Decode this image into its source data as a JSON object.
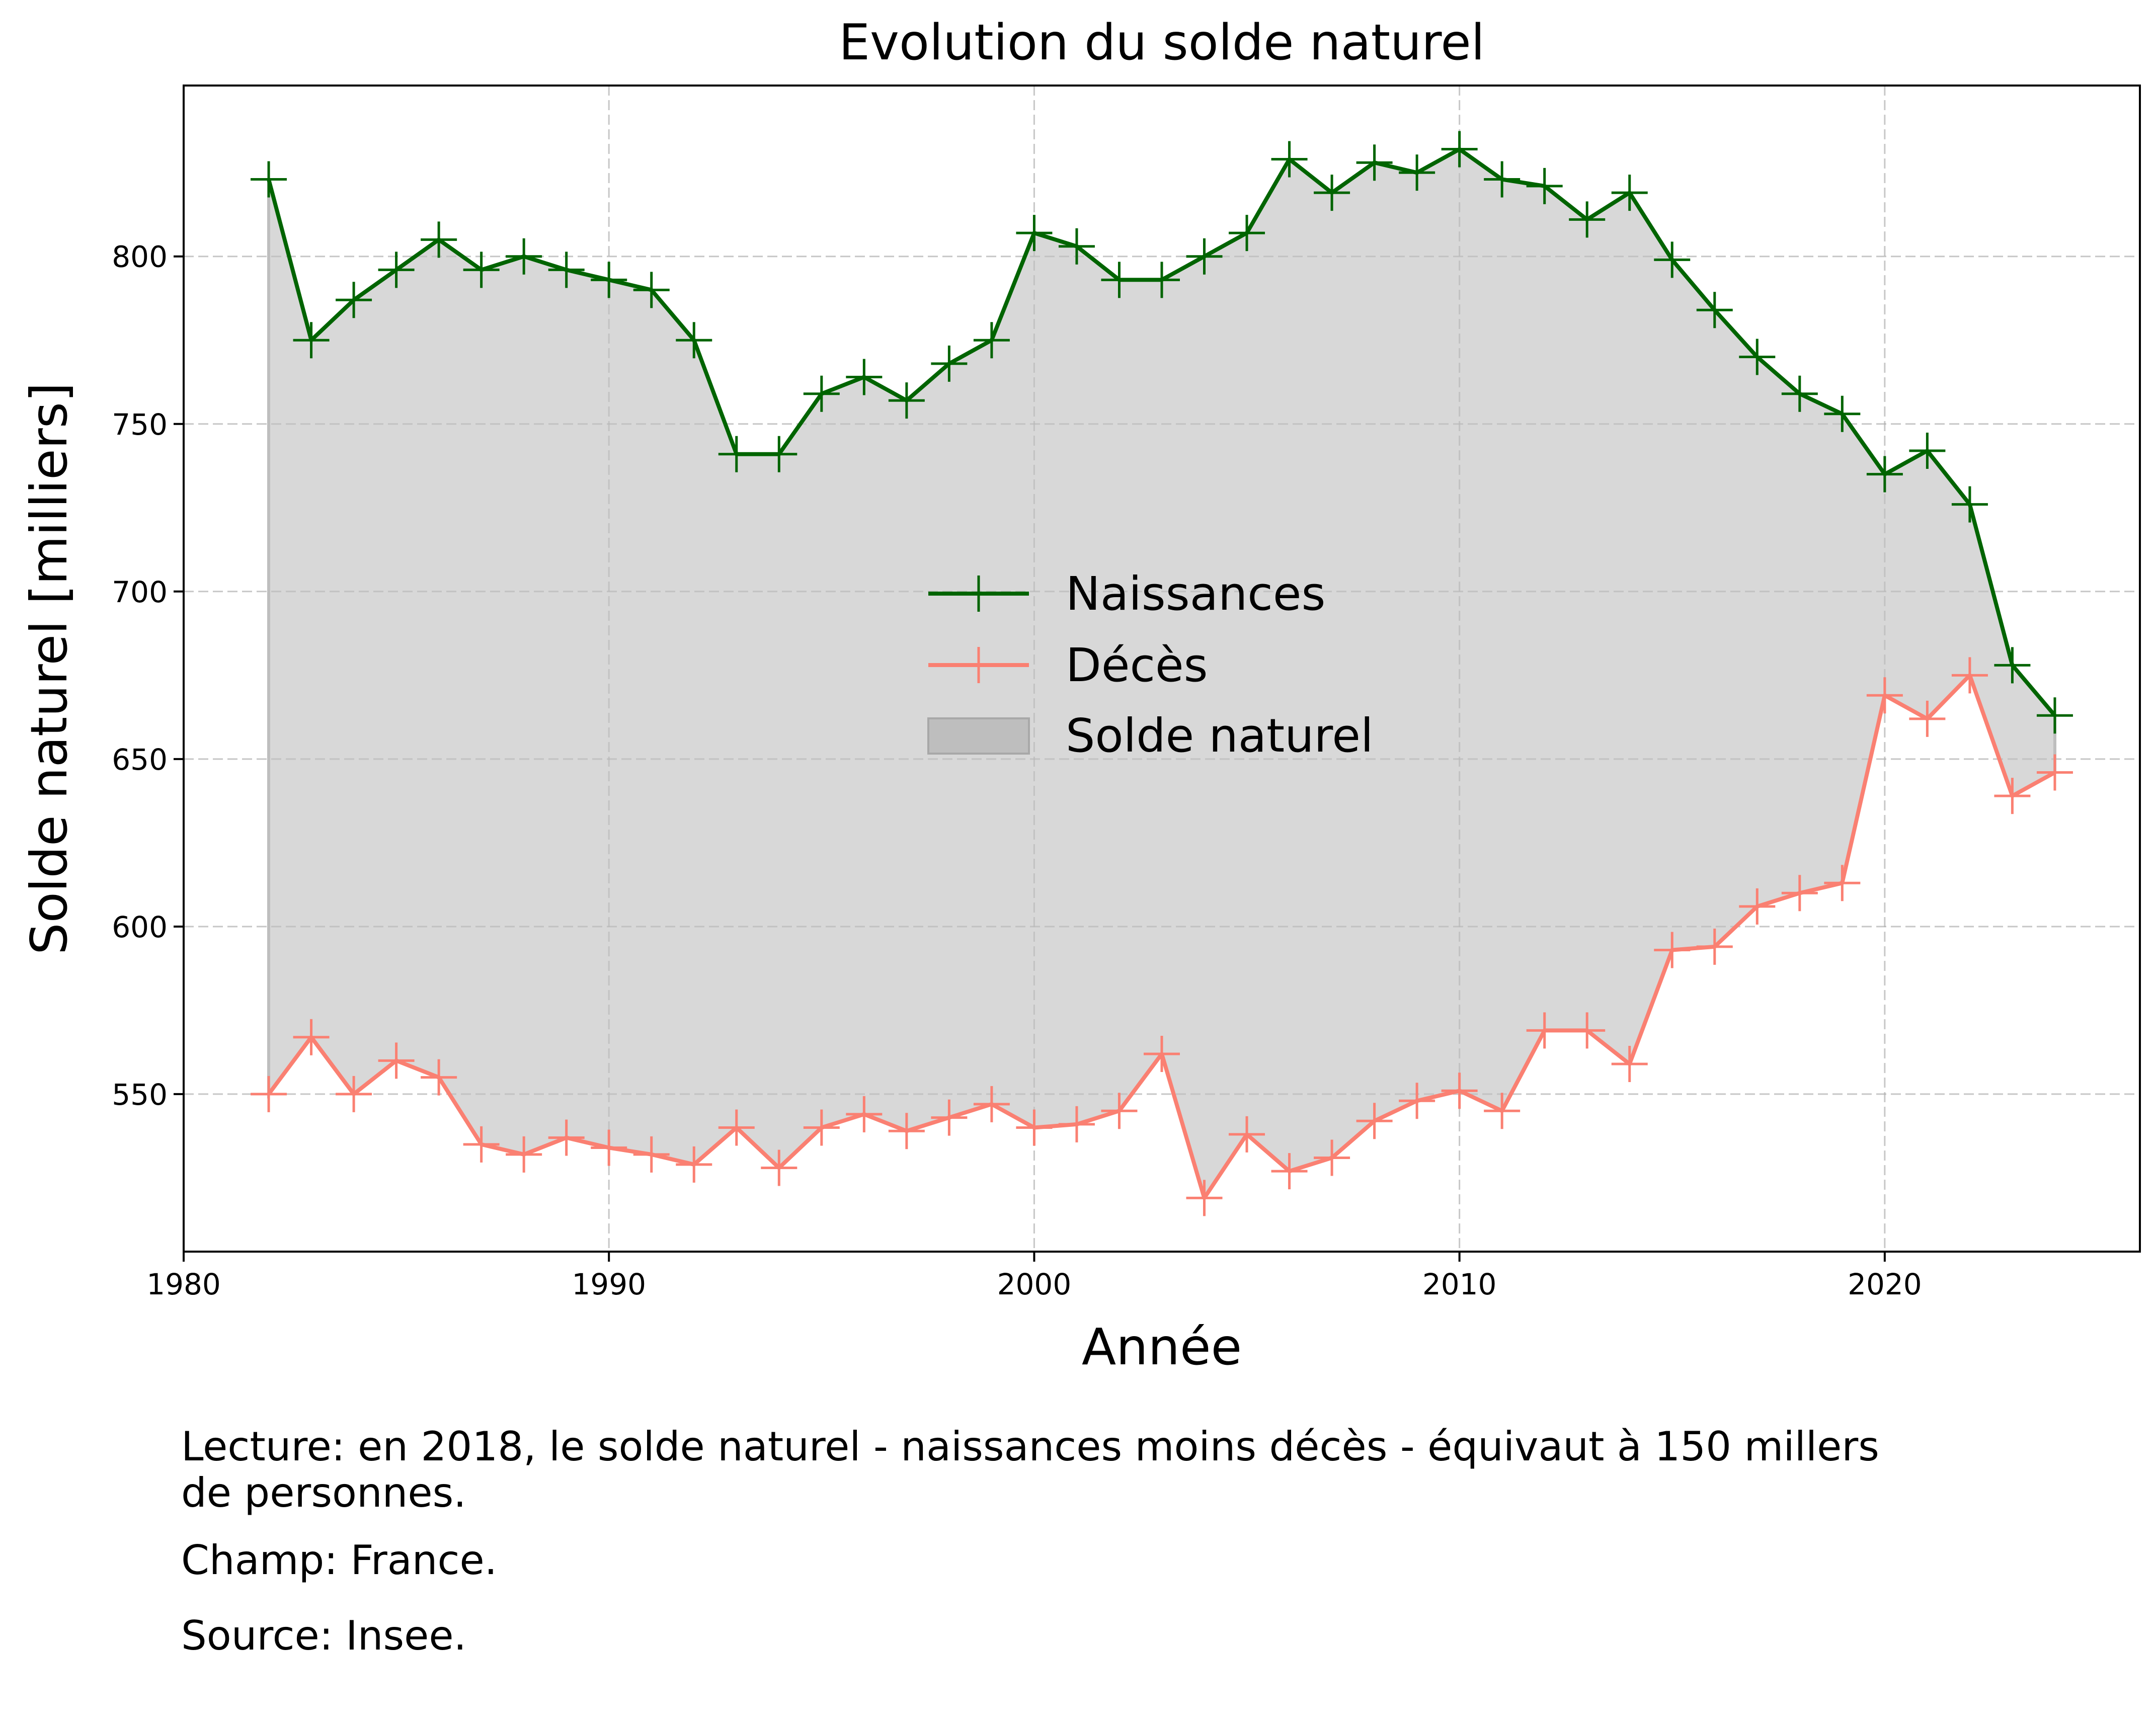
{
  "chart_data": {
    "type": "line",
    "title": "Evolution du solde naturel",
    "xlabel": "Année",
    "ylabel": "Solde naturel [milliers]",
    "xlim": [
      1980,
      2026
    ],
    "ylim": [
      503,
      851
    ],
    "xticks": [
      1980,
      1990,
      2000,
      2010,
      2020
    ],
    "yticks": [
      550,
      600,
      650,
      700,
      750,
      800
    ],
    "grid": true,
    "legend_position": "center",
    "x": [
      1982,
      1983,
      1984,
      1985,
      1986,
      1987,
      1988,
      1989,
      1990,
      1991,
      1992,
      1993,
      1994,
      1995,
      1996,
      1997,
      1998,
      1999,
      2000,
      2001,
      2002,
      2003,
      2004,
      2005,
      2006,
      2007,
      2008,
      2009,
      2010,
      2011,
      2012,
      2013,
      2014,
      2015,
      2016,
      2017,
      2018,
      2019,
      2020,
      2021,
      2022,
      2023,
      2024
    ],
    "series": [
      {
        "name": "Naissances",
        "color": "#006400",
        "values": [
          823,
          775,
          787,
          796,
          805,
          796,
          800,
          796,
          793,
          790,
          775,
          741,
          741,
          759,
          764,
          757,
          768,
          775,
          807,
          803,
          793,
          793,
          800,
          807,
          829,
          819,
          828,
          825,
          832,
          823,
          821,
          811,
          819,
          799,
          784,
          770,
          759,
          753,
          735,
          742,
          726,
          678,
          663
        ]
      },
      {
        "name": "Décès",
        "color": "#FA8072",
        "values": [
          550,
          567,
          550,
          560,
          555,
          535,
          532,
          537,
          534,
          532,
          529,
          540,
          528,
          540,
          544,
          539,
          543,
          547,
          540,
          541,
          545,
          562,
          519,
          538,
          527,
          531,
          542,
          548,
          551,
          545,
          569,
          569,
          559,
          593,
          594,
          606,
          610,
          613,
          669,
          662,
          675,
          639,
          646
        ]
      }
    ],
    "fill": {
      "name": "Solde naturel",
      "between": [
        "Naissances",
        "Décès"
      ],
      "color": "#bebebe"
    }
  },
  "notes": {
    "lecture_line1": "Lecture: en 2018, le solde naturel - naissances moins décès - équivaut à 150 millers",
    "lecture_line2": "de personnes.",
    "champ": "Champ: France.",
    "source": "Source: Insee."
  }
}
